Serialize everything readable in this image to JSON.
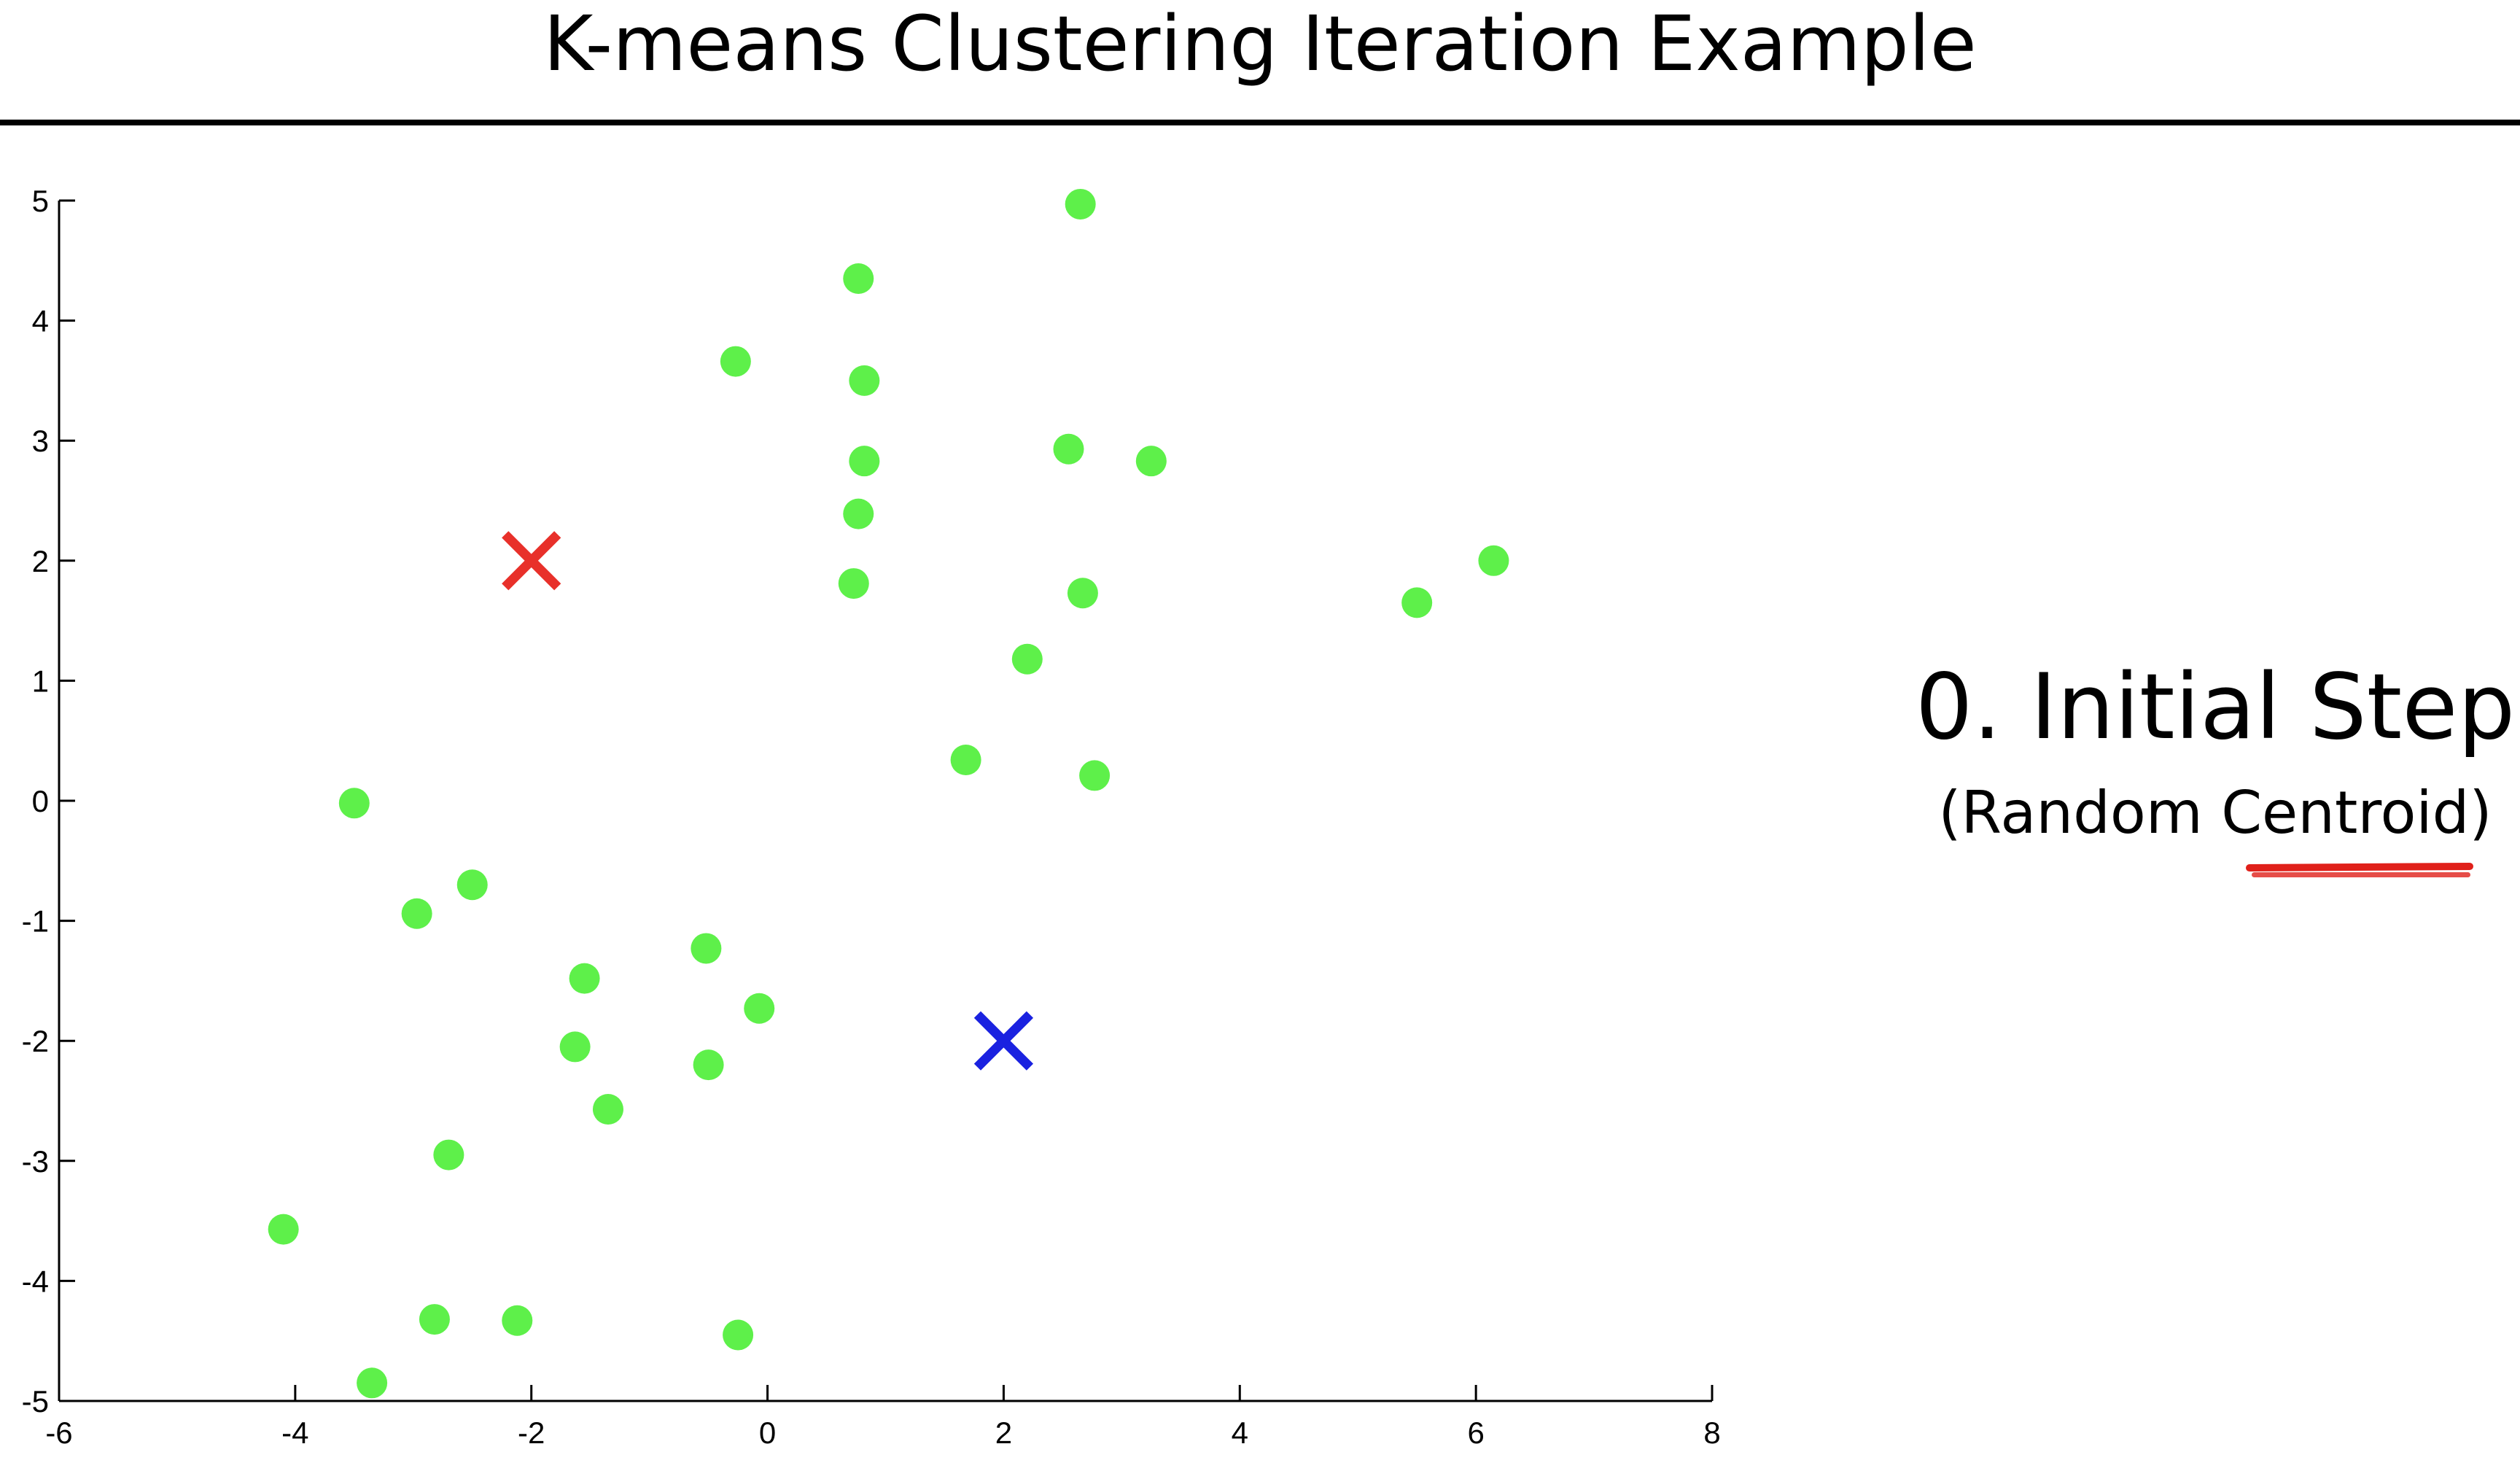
{
  "slide": {
    "title": "K-means Clustering Iteration Example",
    "step_title": "0. Initial Step",
    "step_subtitle": "(Random Centroid)",
    "underline_color": "#e0201a"
  },
  "chart_data": {
    "type": "scatter",
    "title": "",
    "xlabel": "",
    "ylabel": "",
    "xlim": [
      -6,
      8
    ],
    "ylim": [
      -5,
      5
    ],
    "xticks": [
      -6,
      -4,
      -2,
      0,
      2,
      4,
      6,
      8
    ],
    "yticks": [
      -5,
      -4,
      -3,
      -2,
      -1,
      0,
      1,
      2,
      3,
      4,
      5
    ],
    "grid": false,
    "series": [
      {
        "color": "#5ef04a",
        "marker": "circle",
        "points": [
          [
            2.65,
            4.97
          ],
          [
            0.77,
            4.35
          ],
          [
            -0.27,
            3.66
          ],
          [
            0.82,
            3.5
          ],
          [
            2.55,
            2.93
          ],
          [
            0.82,
            2.83
          ],
          [
            3.25,
            2.83
          ],
          [
            0.77,
            2.39
          ],
          [
            6.15,
            2.0
          ],
          [
            0.73,
            1.81
          ],
          [
            2.67,
            1.73
          ],
          [
            5.5,
            1.65
          ],
          [
            2.2,
            1.18
          ],
          [
            1.68,
            0.34
          ],
          [
            2.77,
            0.21
          ],
          [
            -3.5,
            -0.02
          ],
          [
            -2.5,
            -0.7
          ],
          [
            -2.97,
            -0.94
          ],
          [
            -0.52,
            -1.23
          ],
          [
            -1.55,
            -1.48
          ],
          [
            -0.07,
            -1.73
          ],
          [
            -1.63,
            -2.05
          ],
          [
            -0.5,
            -2.2
          ],
          [
            -1.35,
            -2.57
          ],
          [
            -2.7,
            -2.95
          ],
          [
            -4.1,
            -3.57
          ],
          [
            -2.82,
            -4.32
          ],
          [
            -2.12,
            -4.33
          ],
          [
            -0.25,
            -4.45
          ],
          [
            -3.35,
            -4.85
          ]
        ]
      }
    ],
    "centroids": [
      {
        "x": -2.0,
        "y": 2.0,
        "color": "#e8302a",
        "marker": "x"
      },
      {
        "x": 2.0,
        "y": -2.0,
        "color": "#1a22e0",
        "marker": "x"
      }
    ]
  }
}
